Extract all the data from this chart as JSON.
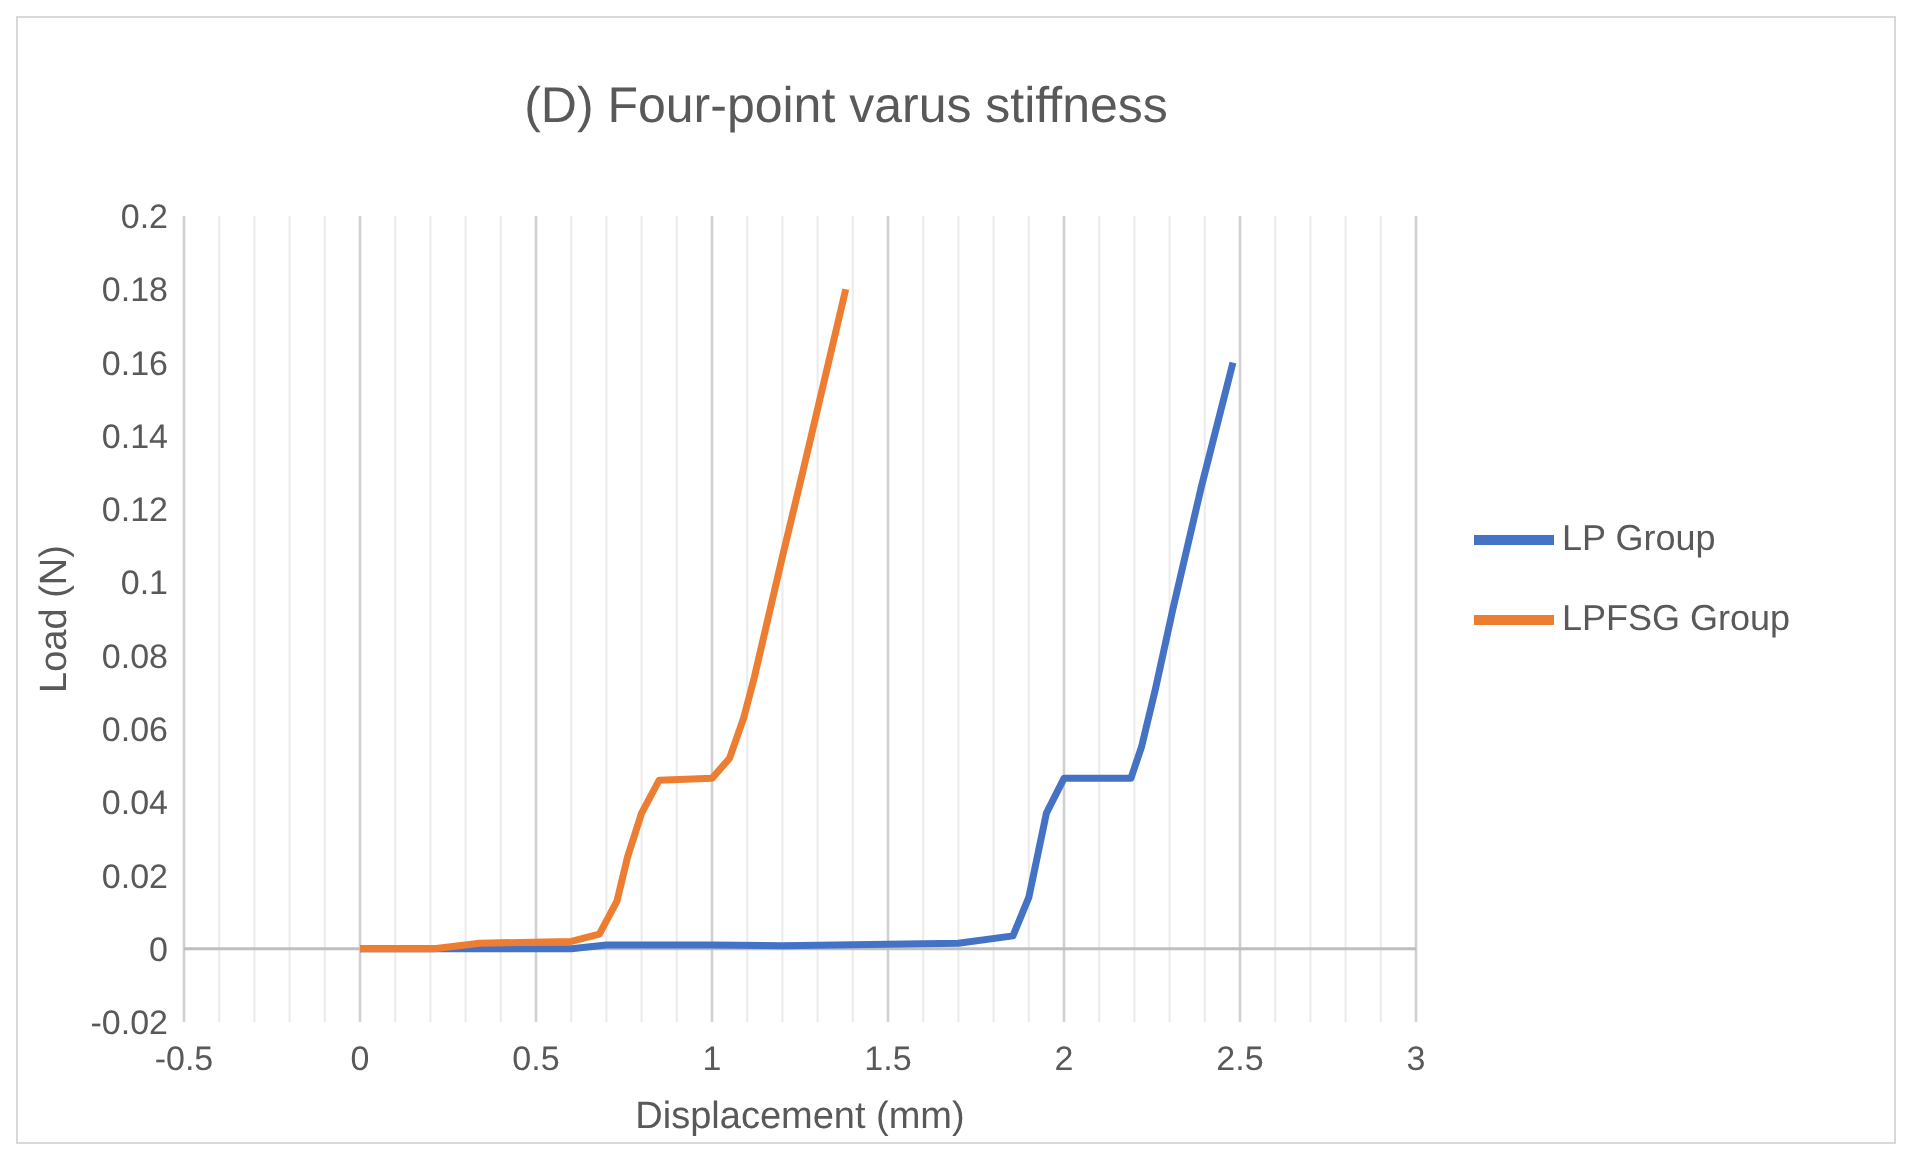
{
  "chart_data": {
    "type": "line",
    "title": "(D) Four-point varus stiffness",
    "xlabel": "Displacement (mm)",
    "ylabel": "Load (N)",
    "xlim": [
      -0.5,
      3
    ],
    "ylim": [
      -0.02,
      0.2
    ],
    "xticks": [
      -0.5,
      {
        "value": -0.4,
        "label": null
      },
      {
        "value": -0.3,
        "label": null
      },
      {
        "value": -0.2,
        "label": null
      },
      {
        "value": -0.1,
        "label": null
      },
      0,
      {
        "value": 0.1,
        "label": null
      },
      {
        "value": 0.2,
        "label": null
      },
      {
        "value": 0.3,
        "label": null
      },
      {
        "value": 0.4,
        "label": null
      },
      0.5,
      {
        "value": 0.6,
        "label": null
      },
      {
        "value": 0.7,
        "label": null
      },
      {
        "value": 0.8,
        "label": null
      },
      {
        "value": 0.9,
        "label": null
      },
      1,
      {
        "value": 1.1,
        "label": null
      },
      {
        "value": 1.2,
        "label": null
      },
      {
        "value": 1.3,
        "label": null
      },
      {
        "value": 1.4,
        "label": null
      },
      1.5,
      {
        "value": 1.6,
        "label": null
      },
      {
        "value": 1.7,
        "label": null
      },
      {
        "value": 1.8,
        "label": null
      },
      {
        "value": 1.9,
        "label": null
      },
      2,
      {
        "value": 2.1,
        "label": null
      },
      {
        "value": 2.2,
        "label": null
      },
      {
        "value": 2.3,
        "label": null
      },
      {
        "value": 2.4,
        "label": null
      },
      2.5,
      {
        "value": 2.6,
        "label": null
      },
      {
        "value": 2.7,
        "label": null
      },
      {
        "value": 2.8,
        "label": null
      },
      {
        "value": 2.9,
        "label": null
      },
      3
    ],
    "yticks": [
      -0.02,
      0,
      0.02,
      0.04,
      0.06,
      0.08,
      0.1,
      0.12,
      0.14,
      0.16,
      0.18,
      0.2
    ],
    "grid": "x",
    "legend": "right",
    "marker": "none",
    "line_style": "solid",
    "series": [
      {
        "name": "LP Group",
        "color": "#4472c4",
        "x": [
          0,
          0.6,
          0.7,
          1.0,
          1.2,
          1.5,
          1.7,
          1.855,
          1.9,
          1.95,
          2.0,
          2.19,
          2.22,
          2.26,
          2.31,
          2.39,
          2.48
        ],
        "values": [
          0,
          0,
          0.001,
          0.001,
          0.0008,
          0.0012,
          0.0015,
          0.0035,
          0.014,
          0.037,
          0.0465,
          0.0465,
          0.055,
          0.071,
          0.093,
          0.126,
          0.16
        ]
      },
      {
        "name": "LPFSG Group",
        "color": "#ed7d31",
        "x": [
          0,
          0.21,
          0.34,
          0.6,
          0.68,
          0.73,
          0.76,
          0.8,
          0.85,
          1.0,
          1.05,
          1.09,
          1.12,
          1.2,
          1.26,
          1.38
        ],
        "values": [
          0,
          0,
          0.0015,
          0.002,
          0.004,
          0.013,
          0.025,
          0.037,
          0.046,
          0.0465,
          0.052,
          0.063,
          0.074,
          0.107,
          0.131,
          0.18
        ]
      }
    ]
  }
}
